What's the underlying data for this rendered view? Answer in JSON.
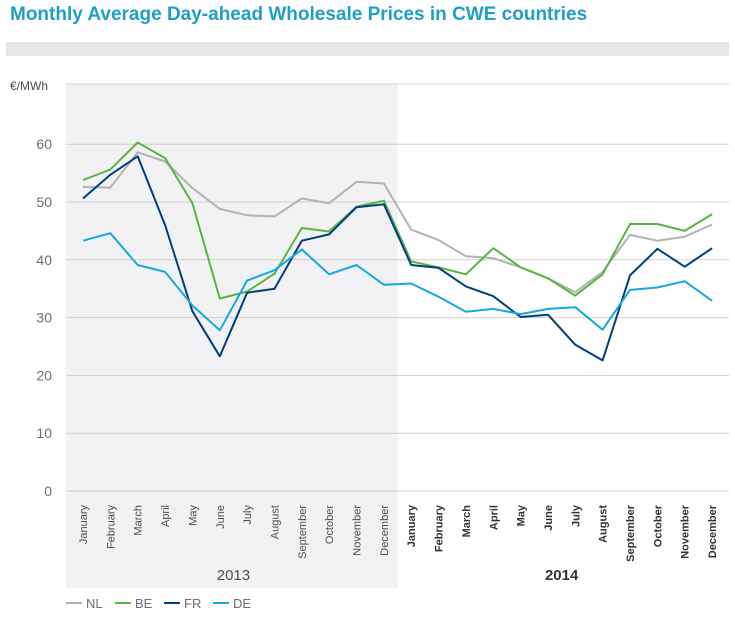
{
  "header": {
    "title": "Monthly Average Day-ahead Wholesale Prices in CWE countries"
  },
  "chart_data": {
    "type": "line",
    "title": "Monthly Average Day-ahead Wholesale Prices in CWE countries",
    "ylabel": "€/MWh",
    "ylim": [
      0,
      70
    ],
    "yticks": [
      0,
      10,
      20,
      30,
      40,
      50,
      60
    ],
    "grid": true,
    "legend_position": "bottom-left",
    "categories": [
      "January",
      "February",
      "March",
      "April",
      "May",
      "June",
      "July",
      "August",
      "September",
      "October",
      "November",
      "December",
      "January",
      "February",
      "March",
      "April",
      "May",
      "June",
      "July",
      "August",
      "September",
      "October",
      "November",
      "December"
    ],
    "year_groups": [
      {
        "label": "2013",
        "start": 0,
        "end": 11,
        "shaded": true,
        "bold": false
      },
      {
        "label": "2014",
        "start": 12,
        "end": 23,
        "shaded": false,
        "bold": true
      }
    ],
    "series": [
      {
        "name": "NL",
        "color": "#b3b3b3",
        "values": [
          52.6,
          52.5,
          58.6,
          57.0,
          52.4,
          48.8,
          47.7,
          47.5,
          50.6,
          49.8,
          53.5,
          53.2,
          45.2,
          43.4,
          40.6,
          40.3,
          38.7,
          36.8,
          34.4,
          37.9,
          44.3,
          43.3,
          44.0,
          46.1
        ]
      },
      {
        "name": "BE",
        "color": "#5ab540",
        "values": [
          53.8,
          55.6,
          60.3,
          57.6,
          49.8,
          33.3,
          34.5,
          37.6,
          45.5,
          44.9,
          49.2,
          50.2,
          39.7,
          38.7,
          37.5,
          42.0,
          38.7,
          36.8,
          33.8,
          37.5,
          46.2,
          46.2,
          45.0,
          47.9
        ]
      },
      {
        "name": "FR",
        "color": "#003f7f",
        "values": [
          50.6,
          54.7,
          57.9,
          46.0,
          31.1,
          23.3,
          34.3,
          35.0,
          43.3,
          44.4,
          49.1,
          49.6,
          39.1,
          38.6,
          35.4,
          33.7,
          30.1,
          30.5,
          25.3,
          22.6,
          37.3,
          41.9,
          38.8,
          42.0
        ]
      },
      {
        "name": "DE",
        "color": "#16a8e0",
        "values": [
          43.3,
          44.6,
          39.1,
          37.9,
          32.1,
          27.8,
          36.4,
          38.2,
          41.8,
          37.5,
          39.1,
          35.7,
          35.9,
          33.6,
          31.0,
          31.5,
          30.6,
          31.5,
          31.8,
          27.9,
          34.8,
          35.2,
          36.3,
          32.9
        ]
      }
    ]
  }
}
